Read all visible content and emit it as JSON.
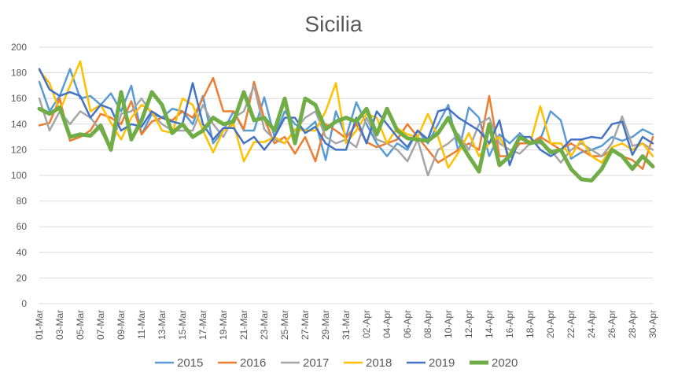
{
  "chart_data": {
    "type": "line",
    "title": "Sicilia",
    "xlabel": "",
    "ylabel": "",
    "ylim": [
      0,
      200
    ],
    "yticks": [
      0,
      20,
      40,
      60,
      80,
      100,
      120,
      140,
      160,
      180,
      200
    ],
    "grid": true,
    "legend_position": "bottom",
    "x": [
      "01-Mar",
      "02-Mar",
      "03-Mar",
      "04-Mar",
      "05-Mar",
      "06-Mar",
      "07-Mar",
      "08-Mar",
      "09-Mar",
      "10-Mar",
      "11-Mar",
      "12-Mar",
      "13-Mar",
      "14-Mar",
      "15-Mar",
      "16-Mar",
      "17-Mar",
      "18-Mar",
      "19-Mar",
      "20-Mar",
      "21-Mar",
      "22-Mar",
      "23-Mar",
      "24-Mar",
      "25-Mar",
      "26-Mar",
      "27-Mar",
      "28-Mar",
      "29-Mar",
      "30-Mar",
      "31-Mar",
      "01-Apr",
      "02-Apr",
      "03-Apr",
      "04-Apr",
      "05-Apr",
      "06-Apr",
      "07-Apr",
      "08-Apr",
      "09-Apr",
      "10-Apr",
      "11-Apr",
      "12-Apr",
      "13-Apr",
      "14-Apr",
      "15-Apr",
      "16-Apr",
      "17-Apr",
      "18-Apr",
      "19-Apr",
      "20-Apr",
      "21-Apr",
      "22-Apr",
      "23-Apr",
      "24-Apr",
      "25-Apr",
      "26-Apr",
      "27-Apr",
      "28-Apr",
      "29-Apr",
      "30-Apr"
    ],
    "xtick_labels": [
      "01-Mar",
      "03-Mar",
      "05-Mar",
      "07-Mar",
      "09-Mar",
      "11-Mar",
      "13-Mar",
      "15-Mar",
      "17-Mar",
      "19-Mar",
      "21-Mar",
      "23-Mar",
      "25-Mar",
      "27-Mar",
      "29-Mar",
      "31-Mar",
      "02-Apr",
      "04-Apr",
      "06-Apr",
      "08-Apr",
      "10-Apr",
      "12-Apr",
      "14-Apr",
      "16-Apr",
      "18-Apr",
      "20-Apr",
      "22-Apr",
      "24-Apr",
      "26-Apr",
      "28-Apr",
      "30-Apr"
    ],
    "series": [
      {
        "name": "2015",
        "color": "#5B9BD5",
        "width": 2.5,
        "values": [
          173,
          150,
          162,
          183,
          160,
          162,
          155,
          164,
          150,
          170,
          132,
          148,
          145,
          152,
          150,
          140,
          162,
          125,
          135,
          150,
          135,
          135,
          161,
          130,
          150,
          140,
          135,
          142,
          112,
          150,
          130,
          157,
          140,
          125,
          115,
          125,
          120,
          135,
          125,
          140,
          155,
          118,
          153,
          145,
          115,
          132,
          125,
          133,
          125,
          128,
          150,
          143,
          113,
          118,
          120,
          123,
          130,
          127,
          130,
          136,
          132
        ]
      },
      {
        "name": "2016",
        "color": "#ED7D31",
        "width": 2.5,
        "values": [
          139,
          141,
          160,
          127,
          130,
          135,
          148,
          145,
          140,
          158,
          132,
          142,
          145,
          143,
          150,
          145,
          160,
          176,
          150,
          150,
          136,
          173,
          144,
          125,
          130,
          117,
          130,
          111,
          140,
          135,
          129,
          140,
          126,
          122,
          125,
          128,
          140,
          130,
          120,
          110,
          115,
          120,
          125,
          120,
          162,
          115,
          115,
          125,
          125,
          130,
          125,
          120,
          125,
          120,
          115,
          115,
          120,
          115,
          112,
          105,
          130
        ]
      },
      {
        "name": "2017",
        "color": "#A5A5A5",
        "width": 2.5,
        "values": [
          160,
          135,
          150,
          140,
          150,
          145,
          135,
          120,
          148,
          150,
          160,
          148,
          140,
          135,
          135,
          135,
          155,
          140,
          130,
          145,
          150,
          170,
          136,
          128,
          125,
          135,
          145,
          150,
          130,
          125,
          128,
          122,
          145,
          128,
          125,
          120,
          111,
          128,
          100,
          120,
          125,
          132,
          120,
          140,
          145,
          125,
          120,
          117,
          125,
          125,
          120,
          110,
          120,
          125,
          120,
          115,
          125,
          146,
          123,
          125,
          120
        ]
      },
      {
        "name": "2018",
        "color": "#FFC000",
        "width": 2.5,
        "values": [
          182,
          172,
          150,
          170,
          189,
          150,
          155,
          141,
          128,
          145,
          155,
          150,
          135,
          133,
          160,
          155,
          135,
          118,
          135,
          140,
          111,
          126,
          126,
          130,
          125,
          136,
          135,
          135,
          150,
          172,
          125,
          135,
          148,
          145,
          125,
          137,
          132,
          130,
          148,
          130,
          106,
          118,
          133,
          115,
          125,
          130,
          115,
          130,
          125,
          154,
          125,
          125,
          115,
          128,
          115,
          110,
          122,
          125,
          120,
          125,
          115
        ]
      },
      {
        "name": "2019",
        "color": "#4472C4",
        "width": 2.5,
        "values": [
          183,
          167,
          162,
          165,
          162,
          145,
          155,
          152,
          135,
          140,
          138,
          150,
          145,
          142,
          140,
          172,
          140,
          128,
          137,
          137,
          125,
          130,
          120,
          130,
          145,
          145,
          133,
          138,
          125,
          120,
          120,
          145,
          125,
          150,
          140,
          130,
          122,
          135,
          128,
          150,
          152,
          145,
          140,
          135,
          125,
          143,
          108,
          130,
          130,
          120,
          115,
          120,
          128,
          128,
          130,
          129,
          140,
          142,
          116,
          130,
          125
        ]
      },
      {
        "name": "2020",
        "color": "#70AD47",
        "width": 5,
        "values": [
          152,
          148,
          153,
          130,
          132,
          131,
          139,
          120,
          165,
          128,
          143,
          165,
          155,
          133,
          140,
          130,
          135,
          145,
          140,
          142,
          165,
          143,
          145,
          135,
          160,
          125,
          160,
          155,
          136,
          142,
          145,
          142,
          152,
          132,
          152,
          135,
          129,
          128,
          127,
          133,
          145,
          128,
          115,
          103,
          140,
          108,
          115,
          130,
          125,
          127,
          118,
          120,
          105,
          97,
          96,
          105,
          120,
          115,
          105,
          115,
          107
        ]
      }
    ]
  }
}
